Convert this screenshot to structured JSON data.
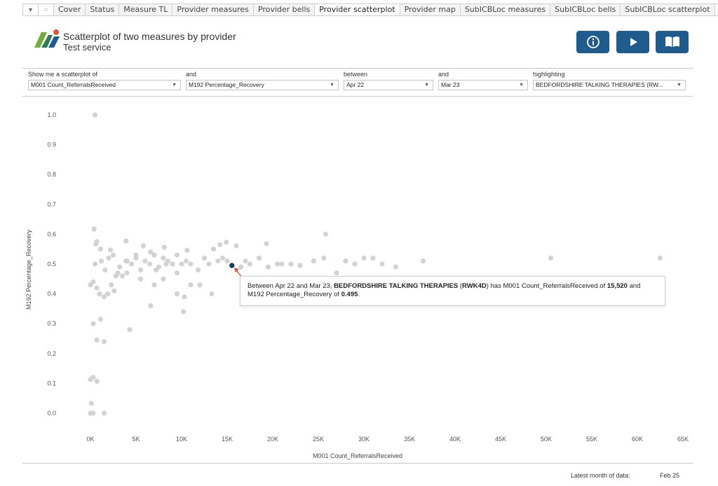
{
  "tabs": {
    "menu_glyph": "▾",
    "prev_glyph": "<",
    "next_glyph": ">",
    "items": [
      "Cover",
      "Status",
      "Measure TL",
      "Provider measures",
      "Provider bells",
      "Provider scatterplot",
      "Provider map",
      "SubICBLoc measures",
      "SubICBLoc bells",
      "SubICBLoc scatterplot"
    ],
    "active": "Provider scatterplot"
  },
  "header": {
    "title": "Scatterplot of two measures by provider",
    "subtitle": "Test service",
    "buttons": [
      "info-icon",
      "play-icon",
      "book-icon"
    ]
  },
  "filters": {
    "measure_x_label": "Show me a scatterplot of",
    "measure_x_value": "M001 Count_ReferralsReceived",
    "measure_y_label": "and",
    "measure_y_value": "M192 Percentage_Recovery",
    "from_label": "between",
    "from_value": "Apr 22",
    "to_label": "and",
    "to_value": "Mar 23",
    "highlight_label": "highlighting",
    "highlight_value": "BEDFORDSHIRE TALKING THERAPIES (RW..."
  },
  "tooltip": {
    "t1": "Between Apr 22 and Mar 23, ",
    "provider": "BEDFORDSHIRE TALKING THERAPIES",
    "t2": " (",
    "code": "RWK4D",
    "t3": ") has M001 Count_ReferralsReceived of ",
    "x_value": "15,520",
    "t4": " and M192 Percentage_Recovery of ",
    "y_value": "0.495",
    "t5": "."
  },
  "footer": {
    "latest_label": "Latest month of data:",
    "latest_value": "Feb 25"
  },
  "colors": {
    "accent": "#1f5c8d",
    "point": "#d3d3d3",
    "highlight": "#1b3a57",
    "arrow": "#e0553b"
  },
  "chart_data": {
    "type": "scatter",
    "xlabel": "M001 Count_ReferralsReceived",
    "ylabel": "M192 Percentage_Recovery",
    "xlim": [
      0,
      65000
    ],
    "ylim": [
      0,
      1
    ],
    "x_ticks": [
      "0K",
      "5K",
      "10K",
      "15K",
      "20K",
      "25K",
      "30K",
      "35K",
      "40K",
      "45K",
      "50K",
      "55K",
      "60K",
      "65K"
    ],
    "y_ticks": [
      "0.0",
      "0.1",
      "0.2",
      "0.3",
      "0.4",
      "0.5",
      "0.6",
      "0.7",
      "0.8",
      "0.9",
      "1.0"
    ],
    "grid": false,
    "highlighted_point": {
      "x": 15520,
      "y": 0.495
    },
    "points": [
      [
        500,
        1.0
      ],
      [
        0,
        0.0
      ],
      [
        300,
        0.0
      ],
      [
        1500,
        0.0
      ],
      [
        100,
        0.033
      ],
      [
        300,
        0.12
      ],
      [
        0,
        0.113
      ],
      [
        700,
        0.107
      ],
      [
        1100,
        0.315
      ],
      [
        300,
        0.3
      ],
      [
        700,
        0.245
      ],
      [
        1500,
        0.24
      ],
      [
        4300,
        0.28
      ],
      [
        400,
        0.617
      ],
      [
        700,
        0.575
      ],
      [
        600,
        0.567
      ],
      [
        1100,
        0.55
      ],
      [
        2200,
        0.547
      ],
      [
        3900,
        0.577
      ],
      [
        5800,
        0.561
      ],
      [
        8100,
        0.556
      ],
      [
        10600,
        0.546
      ],
      [
        14200,
        0.565
      ],
      [
        14900,
        0.573
      ],
      [
        16000,
        0.561
      ],
      [
        19300,
        0.568
      ],
      [
        25800,
        0.6
      ],
      [
        500,
        0.5
      ],
      [
        1200,
        0.51
      ],
      [
        2000,
        0.52
      ],
      [
        2500,
        0.53
      ],
      [
        3200,
        0.49
      ],
      [
        3500,
        0.46
      ],
      [
        4000,
        0.51
      ],
      [
        4500,
        0.5
      ],
      [
        5000,
        0.52
      ],
      [
        5500,
        0.48
      ],
      [
        6000,
        0.51
      ],
      [
        6500,
        0.5
      ],
      [
        7000,
        0.53
      ],
      [
        7500,
        0.49
      ],
      [
        8000,
        0.52
      ],
      [
        8500,
        0.51
      ],
      [
        9000,
        0.5
      ],
      [
        9500,
        0.53
      ],
      [
        10000,
        0.5
      ],
      [
        10500,
        0.51
      ],
      [
        11000,
        0.5
      ],
      [
        11800,
        0.48
      ],
      [
        12500,
        0.52
      ],
      [
        13000,
        0.5
      ],
      [
        13500,
        0.55
      ],
      [
        14000,
        0.51
      ],
      [
        14500,
        0.52
      ],
      [
        15000,
        0.51
      ],
      [
        16500,
        0.49
      ],
      [
        17000,
        0.51
      ],
      [
        17500,
        0.5
      ],
      [
        18500,
        0.52
      ],
      [
        19500,
        0.49
      ],
      [
        20500,
        0.5
      ],
      [
        21000,
        0.5
      ],
      [
        22000,
        0.5
      ],
      [
        23000,
        0.495
      ],
      [
        24500,
        0.51
      ],
      [
        25600,
        0.52
      ],
      [
        27000,
        0.47
      ],
      [
        28000,
        0.51
      ],
      [
        29000,
        0.5
      ],
      [
        30000,
        0.52
      ],
      [
        31000,
        0.52
      ],
      [
        32000,
        0.5
      ],
      [
        33500,
        0.49
      ],
      [
        36500,
        0.51
      ],
      [
        50500,
        0.52
      ],
      [
        62500,
        0.52
      ],
      [
        1600,
        0.48
      ],
      [
        2800,
        0.46
      ],
      [
        3900,
        0.51
      ],
      [
        5000,
        0.53
      ],
      [
        7200,
        0.48
      ],
      [
        9500,
        0.47
      ],
      [
        8300,
        0.5
      ],
      [
        6600,
        0.54
      ],
      [
        0,
        0.43
      ],
      [
        300,
        0.44
      ],
      [
        700,
        0.42
      ],
      [
        1000,
        0.4
      ],
      [
        1500,
        0.39
      ],
      [
        1900,
        0.4
      ],
      [
        2300,
        0.43
      ],
      [
        2600,
        0.41
      ],
      [
        3000,
        0.47
      ],
      [
        4000,
        0.47
      ],
      [
        5500,
        0.45
      ],
      [
        7000,
        0.43
      ],
      [
        8000,
        0.45
      ],
      [
        11000,
        0.43
      ],
      [
        12000,
        0.43
      ],
      [
        13300,
        0.4
      ],
      [
        9500,
        0.4
      ],
      [
        10300,
        0.39
      ],
      [
        6600,
        0.36
      ],
      [
        10200,
        0.34
      ]
    ]
  }
}
